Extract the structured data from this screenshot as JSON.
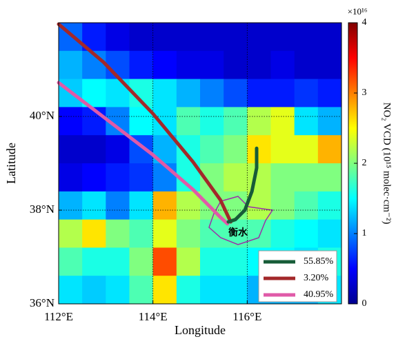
{
  "map": {
    "xlabel": "Longitude",
    "ylabel": "Latitude",
    "xlim": [
      112,
      118
    ],
    "ylim": [
      36,
      42
    ],
    "xticks": [
      {
        "value": 112,
        "label": "112°E"
      },
      {
        "value": 114,
        "label": "114°E"
      },
      {
        "value": 116,
        "label": "116°E"
      }
    ],
    "yticks": [
      {
        "value": 36,
        "label": "36°N"
      },
      {
        "value": 38,
        "label": "38°N"
      },
      {
        "value": 40,
        "label": "40°N"
      }
    ],
    "grid_lon": [
      114,
      116
    ],
    "grid_lat": [
      38,
      40
    ],
    "colorbar": {
      "label": "NO₂ VCD (10¹⁵ molec·cm⁻²)",
      "multiplier": "×10¹⁶",
      "lim": [
        0,
        4
      ],
      "ticks": [
        0,
        1,
        2,
        3,
        4
      ]
    },
    "no2_grid": [
      [
        0.9,
        0.6,
        0.4,
        0.3,
        0.3,
        0.3,
        0.3,
        0.3,
        0.3,
        0.3,
        0.3,
        0.3
      ],
      [
        1.2,
        1.0,
        0.8,
        0.6,
        0.5,
        0.4,
        0.4,
        0.3,
        0.3,
        0.4,
        0.3,
        0.3
      ],
      [
        1.3,
        1.5,
        1.4,
        1.6,
        1.4,
        1.2,
        1.0,
        0.8,
        0.6,
        0.6,
        0.7,
        0.6
      ],
      [
        0.5,
        0.6,
        1.0,
        1.5,
        1.4,
        1.8,
        1.6,
        1.8,
        2.2,
        2.4,
        1.4,
        1.2
      ],
      [
        0.3,
        0.3,
        0.4,
        0.8,
        1.2,
        1.6,
        1.8,
        2.0,
        2.6,
        2.4,
        2.4,
        2.8
      ],
      [
        0.4,
        0.5,
        0.6,
        0.7,
        1.0,
        1.6,
        2.0,
        2.2,
        2.2,
        2.0,
        2.0,
        2.0
      ],
      [
        1.2,
        1.4,
        1.0,
        1.4,
        2.8,
        2.2,
        2.0,
        2.0,
        2.2,
        2.0,
        1.8,
        1.6
      ],
      [
        2.2,
        2.6,
        2.0,
        1.8,
        2.4,
        2.0,
        1.8,
        1.8,
        1.8,
        1.6,
        1.5,
        1.4
      ],
      [
        1.8,
        1.6,
        1.6,
        2.0,
        3.2,
        2.2,
        1.6,
        1.6,
        1.5,
        1.5,
        1.4,
        1.6
      ],
      [
        1.4,
        1.3,
        1.4,
        1.8,
        2.6,
        1.6,
        1.4,
        1.4,
        1.2,
        1.2,
        1.2,
        1.4
      ]
    ],
    "city": "衡水",
    "trajectories": [
      {
        "name": "55.85%",
        "color": "#175c38",
        "lon": [
          116.2,
          116.2,
          116.1,
          115.95,
          115.75,
          115.6
        ],
        "lat": [
          39.32,
          38.9,
          38.4,
          38.0,
          37.8,
          37.75
        ]
      },
      {
        "name": "3.20%",
        "color": "#a3282a",
        "lon": [
          112,
          112.95,
          114,
          114.85,
          115.43,
          115.65
        ],
        "lat": [
          41.97,
          41.16,
          40.06,
          39.03,
          38.22,
          37.75
        ]
      },
      {
        "name": "40.95%",
        "color": "#e05aa8",
        "lon": [
          112,
          112.95,
          114,
          114.85,
          115.43,
          115.58
        ],
        "lat": [
          40.72,
          39.99,
          39.18,
          38.44,
          37.85,
          37.71
        ]
      }
    ]
  }
}
